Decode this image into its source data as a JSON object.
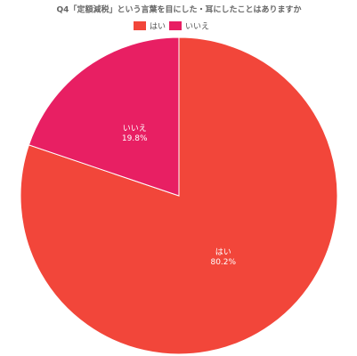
{
  "chart_data": {
    "type": "pie",
    "title": "Q4「定額減税」という言葉を目にした・耳にしたことはありますか",
    "categories": [
      "はい",
      "いいえ"
    ],
    "values": [
      80.2,
      19.8
    ],
    "value_labels": [
      "80.2%",
      "19.8%"
    ],
    "colors": [
      "#f2463a",
      "#e81f63"
    ]
  }
}
